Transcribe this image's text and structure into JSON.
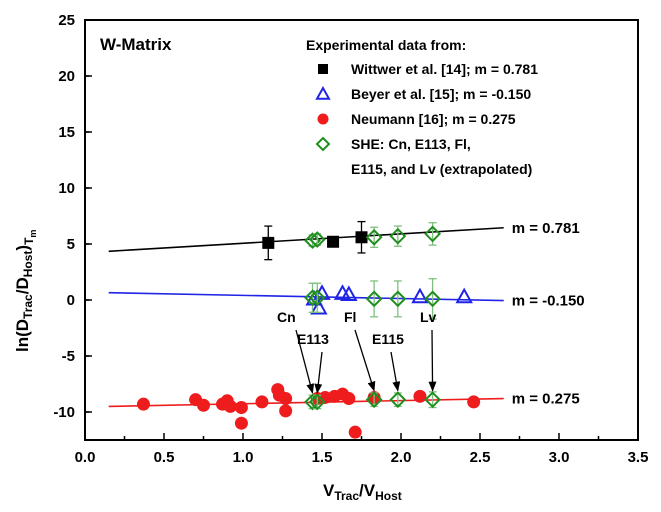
{
  "chart_data": {
    "type": "scatter",
    "panel_title": "W-Matrix",
    "xlabel": {
      "main": "V",
      "sub1": "Trac",
      "mid": "/V",
      "sub2": "Host"
    },
    "ylabel": {
      "pre": "ln(D",
      "sub1": "Trac",
      "mid": "/D",
      "sub2": "Host",
      "post": ")",
      "sub3": "T",
      "sub4": "m"
    },
    "xlim": [
      0.0,
      3.5
    ],
    "ylim": [
      -12.5,
      25
    ],
    "x_ticks": [
      "0.0",
      "0.5",
      "1.0",
      "1.5",
      "2.0",
      "2.5",
      "3.0",
      "3.5"
    ],
    "y_ticks": [
      "-10",
      "-5",
      "0",
      "5",
      "10",
      "15",
      "20",
      "25"
    ],
    "legend_title": "Experimental data from:",
    "colors": {
      "black": "#000000",
      "blue": "#1f24e6",
      "red": "#ee1c1c",
      "green": "#1f8f1f"
    },
    "series": [
      {
        "name": "Wittwer et al. [14]; m = 0.781",
        "marker": "square",
        "color": "#000000",
        "points": [
          {
            "x": 1.16,
            "y": 5.1,
            "err": 1.5
          },
          {
            "x": 1.57,
            "y": 5.2,
            "err": 0
          },
          {
            "x": 1.75,
            "y": 5.6,
            "err": 1.4
          }
        ]
      },
      {
        "name": "Beyer et al. [15]; m = -0.150",
        "marker": "triangle",
        "color": "#1f24e6",
        "points": [
          {
            "x": 1.45,
            "y": 0.1
          },
          {
            "x": 1.48,
            "y": -0.7
          },
          {
            "x": 1.5,
            "y": 0.6
          },
          {
            "x": 1.63,
            "y": 0.6
          },
          {
            "x": 1.67,
            "y": 0.5
          },
          {
            "x": 2.12,
            "y": 0.3
          },
          {
            "x": 2.4,
            "y": 0.3
          }
        ]
      },
      {
        "name": "Neumann [16]; m = 0.275",
        "marker": "circle",
        "color": "#ee1c1c",
        "points": [
          {
            "x": 0.37,
            "y": -9.3
          },
          {
            "x": 0.7,
            "y": -8.9
          },
          {
            "x": 0.75,
            "y": -9.4
          },
          {
            "x": 0.87,
            "y": -9.3
          },
          {
            "x": 0.9,
            "y": -9.0
          },
          {
            "x": 0.92,
            "y": -9.5
          },
          {
            "x": 0.99,
            "y": -9.6
          },
          {
            "x": 0.99,
            "y": -11.0
          },
          {
            "x": 1.12,
            "y": -9.1
          },
          {
            "x": 1.22,
            "y": -8.0
          },
          {
            "x": 1.23,
            "y": -8.5
          },
          {
            "x": 1.27,
            "y": -8.8
          },
          {
            "x": 1.27,
            "y": -9.9
          },
          {
            "x": 1.47,
            "y": -8.8
          },
          {
            "x": 1.52,
            "y": -8.7
          },
          {
            "x": 1.58,
            "y": -8.6
          },
          {
            "x": 1.63,
            "y": -8.4
          },
          {
            "x": 1.67,
            "y": -8.8
          },
          {
            "x": 1.71,
            "y": -11.8
          },
          {
            "x": 1.83,
            "y": -8.7
          },
          {
            "x": 2.12,
            "y": -8.6
          },
          {
            "x": 2.46,
            "y": -9.1
          }
        ]
      },
      {
        "name": "SHE: Cn, E113, Fl, E115, and Lv (extrapolated)",
        "legend_lines": [
          "SHE: Cn, E113, Fl,",
          "E115, and Lv (extrapolated)"
        ],
        "marker": "diamond",
        "color": "#1f8f1f",
        "points": [
          {
            "x": 1.44,
            "y": 5.3,
            "err": 0.5
          },
          {
            "x": 1.47,
            "y": 5.4,
            "err": 0.5
          },
          {
            "x": 1.83,
            "y": 5.6,
            "err": 0.9
          },
          {
            "x": 1.98,
            "y": 5.7,
            "err": 0.9
          },
          {
            "x": 2.2,
            "y": 5.9,
            "err": 1.0
          },
          {
            "x": 1.44,
            "y": 0.2,
            "err": 1.3
          },
          {
            "x": 1.47,
            "y": 0.2,
            "err": 1.3
          },
          {
            "x": 1.83,
            "y": 0.1,
            "err": 1.6
          },
          {
            "x": 1.98,
            "y": 0.1,
            "err": 1.6
          },
          {
            "x": 2.2,
            "y": 0.1,
            "err": 1.8
          },
          {
            "x": 1.44,
            "y": -9.1,
            "err": 0.6
          },
          {
            "x": 1.47,
            "y": -9.1,
            "err": 0.6
          },
          {
            "x": 1.83,
            "y": -8.9,
            "err": 0.6
          },
          {
            "x": 1.98,
            "y": -8.9,
            "err": 0.6
          },
          {
            "x": 2.2,
            "y": -8.9,
            "err": 0.7
          }
        ]
      }
    ],
    "fit_lines": [
      {
        "label": "m = 0.781",
        "color": "#000000",
        "x": [
          0.15,
          2.65
        ],
        "y": [
          4.35,
          6.45
        ]
      },
      {
        "label": "m = -0.150",
        "color": "#1f24e6",
        "x": [
          0.15,
          2.65
        ],
        "y": [
          0.65,
          -0.05
        ]
      },
      {
        "label": "m = 0.275",
        "color": "#ee1c1c",
        "x": [
          0.15,
          2.65
        ],
        "y": [
          -9.5,
          -8.8
        ]
      }
    ],
    "annotations": [
      {
        "text": "Cn",
        "point": {
          "x": 1.44,
          "y": -9.1
        }
      },
      {
        "text": "E113",
        "point": {
          "x": 1.47,
          "y": -9.1
        }
      },
      {
        "text": "Fl",
        "point": {
          "x": 1.83,
          "y": -8.9
        }
      },
      {
        "text": "E115",
        "point": {
          "x": 1.98,
          "y": -8.9
        }
      },
      {
        "text": "Lv",
        "point": {
          "x": 2.2,
          "y": -8.9
        }
      }
    ]
  }
}
